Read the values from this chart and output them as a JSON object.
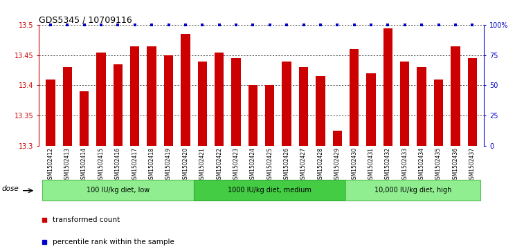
{
  "title": "GDS5345 / 10709116",
  "samples": [
    "GSM1502412",
    "GSM1502413",
    "GSM1502414",
    "GSM1502415",
    "GSM1502416",
    "GSM1502417",
    "GSM1502418",
    "GSM1502419",
    "GSM1502420",
    "GSM1502421",
    "GSM1502422",
    "GSM1502423",
    "GSM1502424",
    "GSM1502425",
    "GSM1502426",
    "GSM1502427",
    "GSM1502428",
    "GSM1502429",
    "GSM1502430",
    "GSM1502431",
    "GSM1502432",
    "GSM1502433",
    "GSM1502434",
    "GSM1502435",
    "GSM1502436",
    "GSM1502437"
  ],
  "values": [
    13.41,
    13.43,
    13.39,
    13.455,
    13.435,
    13.465,
    13.465,
    13.45,
    13.485,
    13.44,
    13.455,
    13.445,
    13.4,
    13.4,
    13.44,
    13.43,
    13.415,
    13.325,
    13.46,
    13.42,
    13.495,
    13.44,
    13.43,
    13.41,
    13.465,
    13.445
  ],
  "percentile_ranks": [
    100,
    100,
    100,
    100,
    100,
    100,
    100,
    100,
    100,
    100,
    100,
    100,
    100,
    100,
    100,
    100,
    100,
    100,
    100,
    100,
    100,
    100,
    100,
    100,
    100,
    100
  ],
  "ylim": [
    13.3,
    13.5
  ],
  "yticks": [
    13.3,
    13.35,
    13.4,
    13.45,
    13.5
  ],
  "ytick_labels": [
    "13.3",
    "13.35",
    "13.4",
    "13.45",
    "13.5"
  ],
  "right_yticks": [
    0,
    25,
    50,
    75,
    100
  ],
  "right_ytick_labels": [
    "0",
    "25",
    "50",
    "75",
    "100%"
  ],
  "bar_color": "#cc0000",
  "percentile_color": "#0000cc",
  "background_color": "#ffffff",
  "xtick_bg_color": "#d8d8d8",
  "groups": [
    {
      "label": "100 IU/kg diet, low",
      "start": 0,
      "end": 8,
      "color": "#90ee90",
      "edgecolor": "#55bb55"
    },
    {
      "label": "1000 IU/kg diet, medium",
      "start": 9,
      "end": 17,
      "color": "#44cc44",
      "edgecolor": "#33aa33"
    },
    {
      "label": "10,000 IU/kg diet, high",
      "start": 18,
      "end": 25,
      "color": "#90ee90",
      "edgecolor": "#55bb55"
    }
  ],
  "dose_label": "dose",
  "legend_items": [
    {
      "color": "#cc0000",
      "label": "transformed count"
    },
    {
      "color": "#0000cc",
      "label": "percentile rank within the sample"
    }
  ],
  "title_fontsize": 9,
  "bar_width": 0.55
}
